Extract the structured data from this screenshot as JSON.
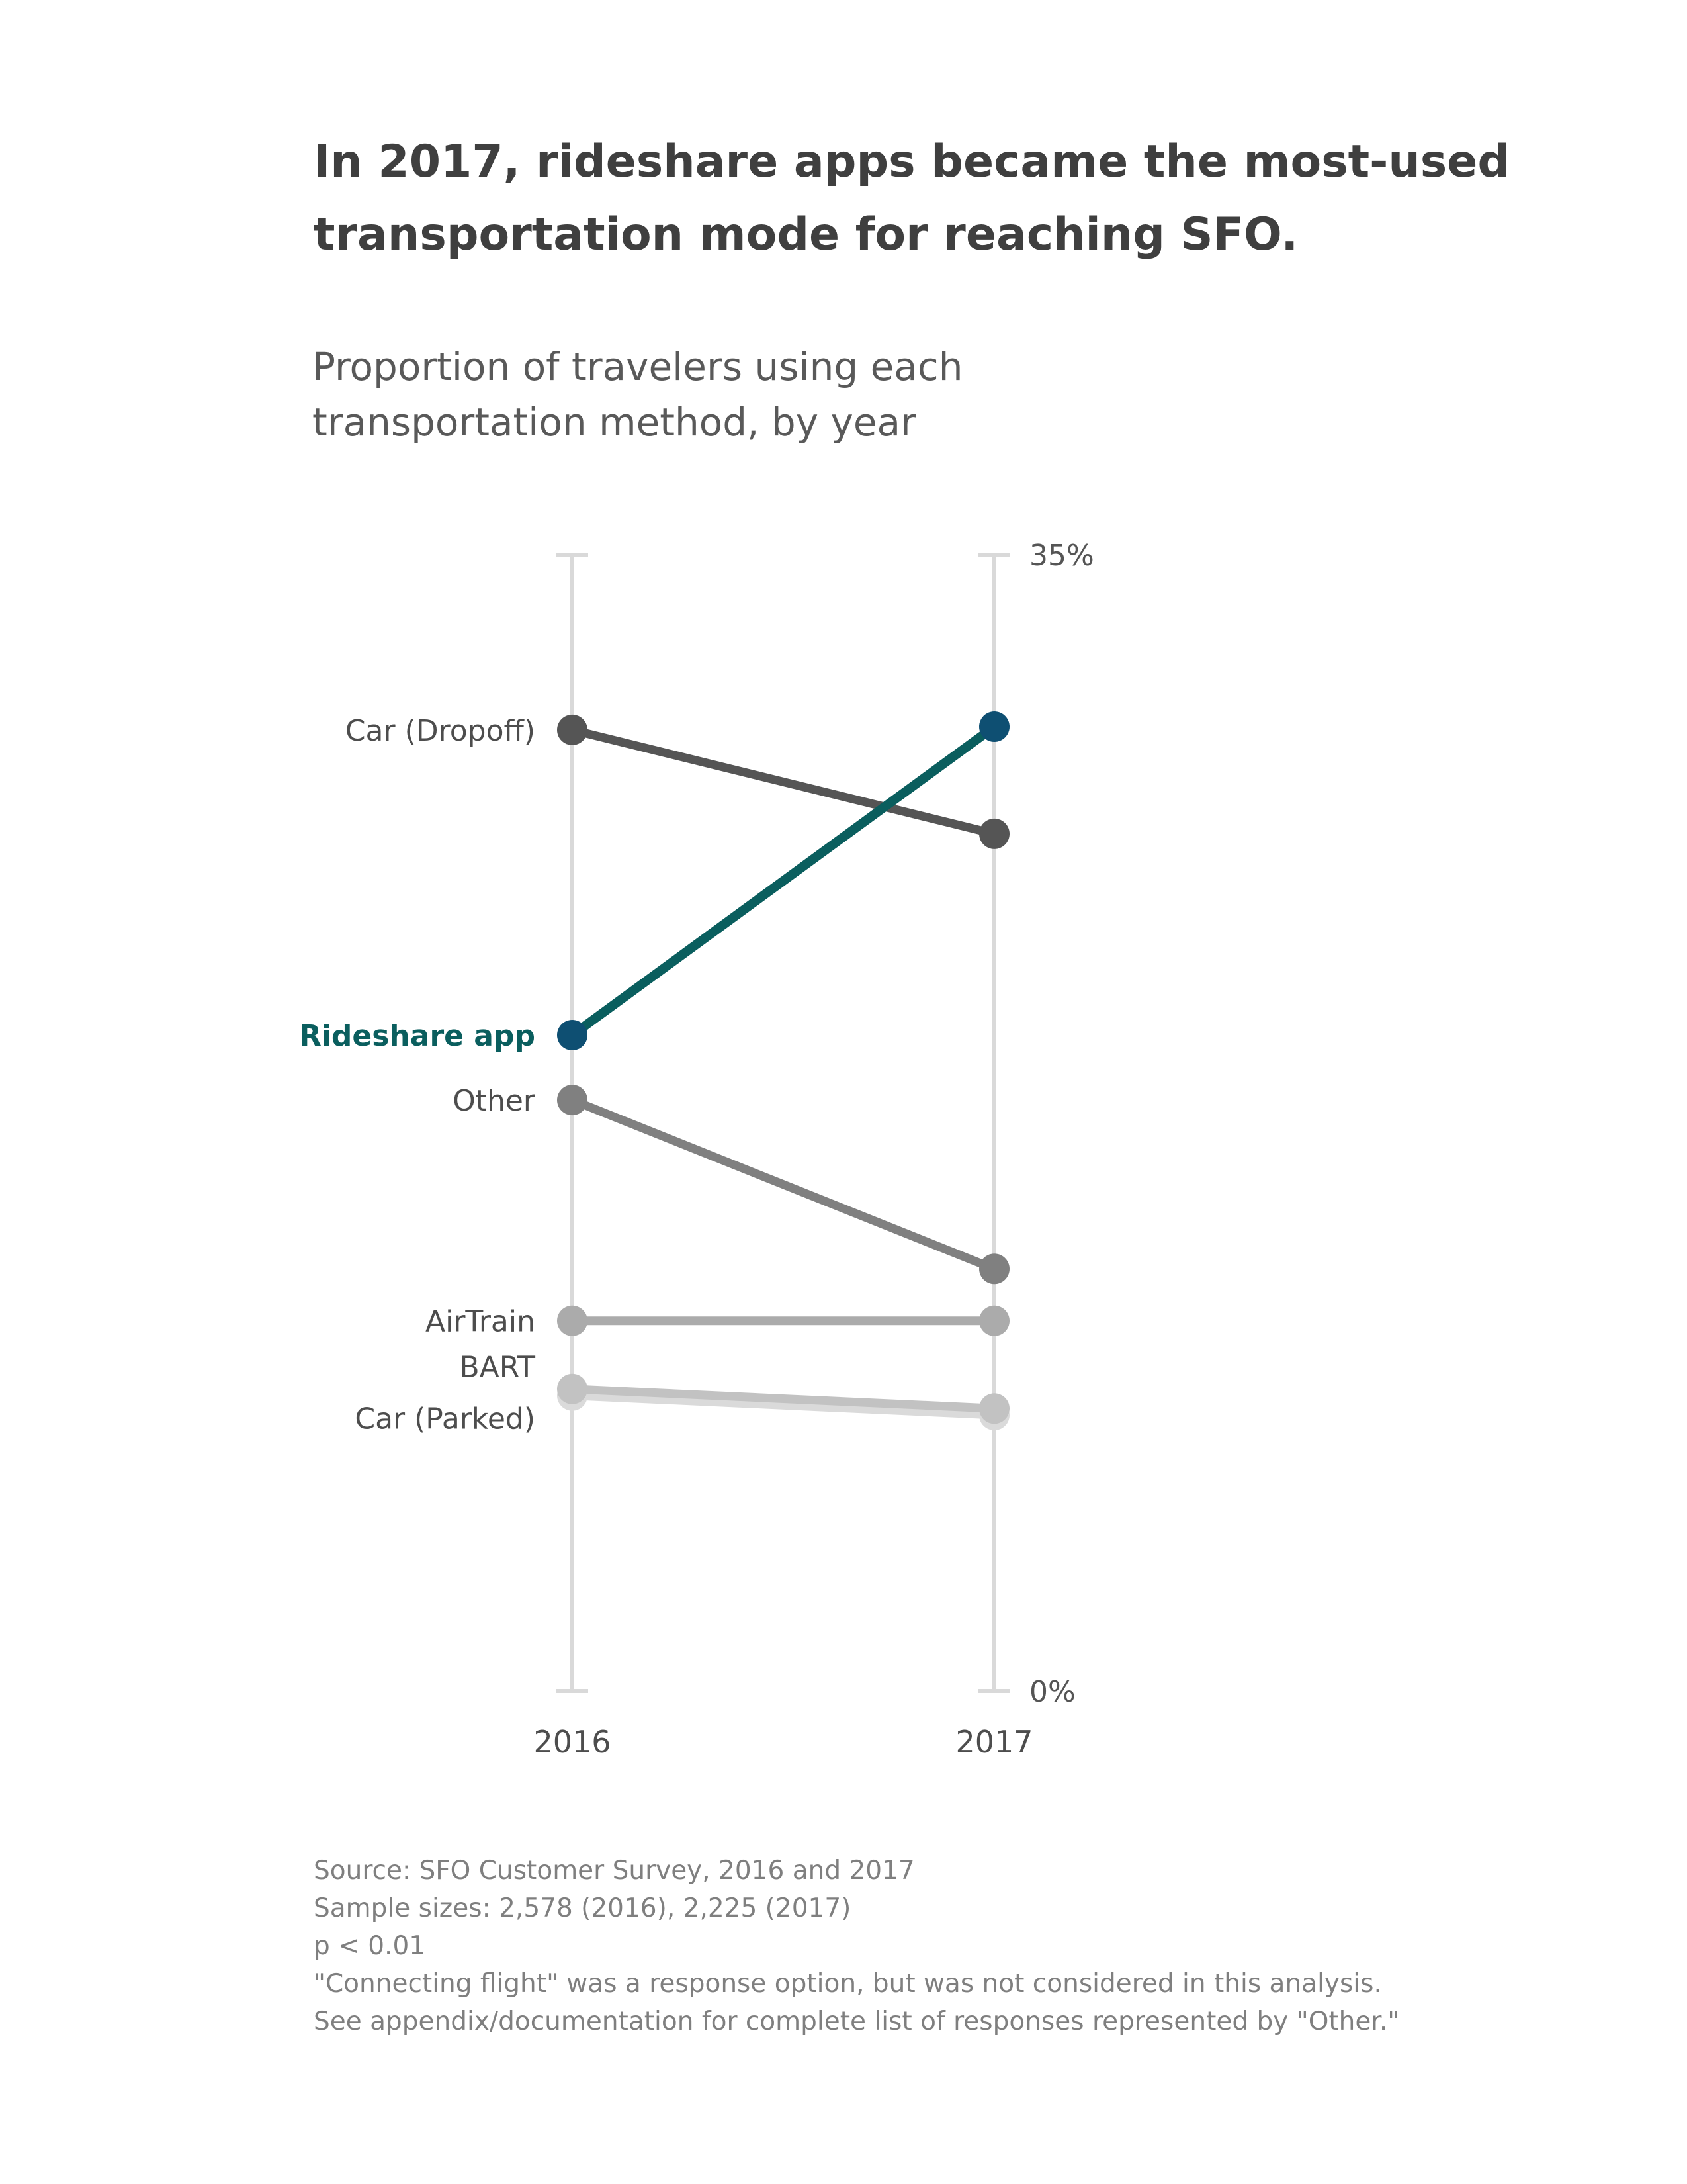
{
  "title": "In 2017, rideshare apps became the most-used transportation mode for reaching SFO.",
  "subtitle": "Proportion of travelers using each transportation method, by year",
  "chart_data": {
    "type": "line",
    "subtype": "slopegraph",
    "categories": [
      "2016",
      "2017"
    ],
    "ylim": [
      0,
      35
    ],
    "y_tick_labels": [
      "35%",
      "0%"
    ],
    "grid": false,
    "legend": "none (direct labels at 2016 end)",
    "series": [
      {
        "name": "Car (Dropoff)",
        "values": [
          29.6,
          26.4
        ],
        "color": "#555555",
        "highlight": false
      },
      {
        "name": "Rideshare app",
        "values": [
          20.2,
          29.7
        ],
        "color": "#0a5e5e",
        "marker_color": "#0e4f72",
        "highlight": true
      },
      {
        "name": "Other",
        "values": [
          18.2,
          13.0
        ],
        "color": "#808080",
        "highlight": false
      },
      {
        "name": "AirTrain",
        "values": [
          11.4,
          11.4
        ],
        "color": "#ababab",
        "highlight": false
      },
      {
        "name": "BART",
        "values": [
          9.3,
          8.7
        ],
        "color": "#c2c2c2",
        "highlight": false
      },
      {
        "name": "Car (Parked)",
        "values": [
          9.1,
          8.5
        ],
        "color": "#dadada",
        "highlight": false
      }
    ]
  },
  "notes": [
    "Source: SFO Customer Survey, 2016 and 2017",
    "Sample sizes: 2,578 (2016), 2,225 (2017)",
    "p < 0.01",
    "\"Connecting flight\" was a response option, but was not considered in this analysis.",
    "See appendix/documentation for complete list of responses represented by \"Other.\""
  ]
}
